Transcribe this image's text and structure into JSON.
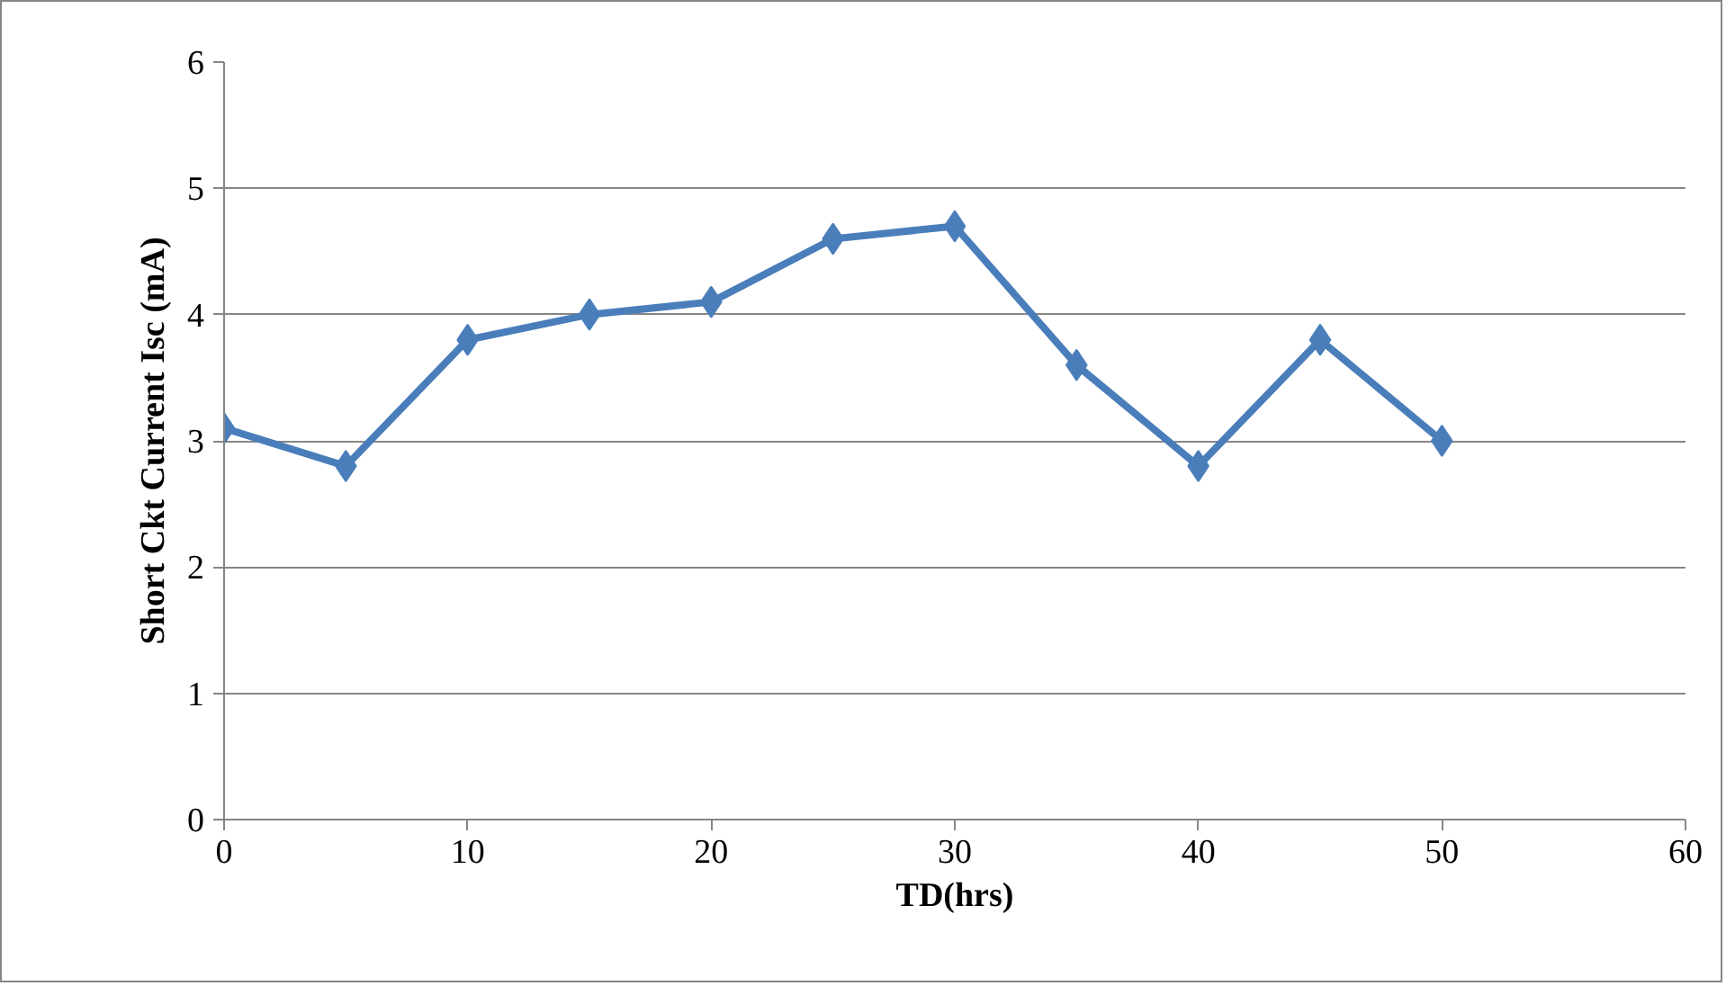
{
  "chart_data": {
    "type": "line",
    "xlabel": "TD(hrs)",
    "ylabel": "Short Ckt Current Isc (mA)",
    "x": [
      0,
      5,
      10,
      15,
      20,
      25,
      30,
      35,
      40,
      45,
      50
    ],
    "series": [
      {
        "color": "#4a7ebb",
        "values": [
          3.1,
          2.8,
          3.8,
          4.0,
          4.1,
          4.6,
          4.7,
          3.6,
          2.8,
          3.8,
          3.0
        ]
      }
    ],
    "xlim": [
      0,
      60
    ],
    "xticks": [
      0,
      10,
      20,
      30,
      40,
      50,
      60
    ],
    "ylim": [
      0,
      6
    ],
    "yticks": [
      0,
      1,
      2,
      3,
      4,
      5,
      6
    ],
    "grid": "y",
    "marker": "diamond",
    "line_style": "solid"
  }
}
